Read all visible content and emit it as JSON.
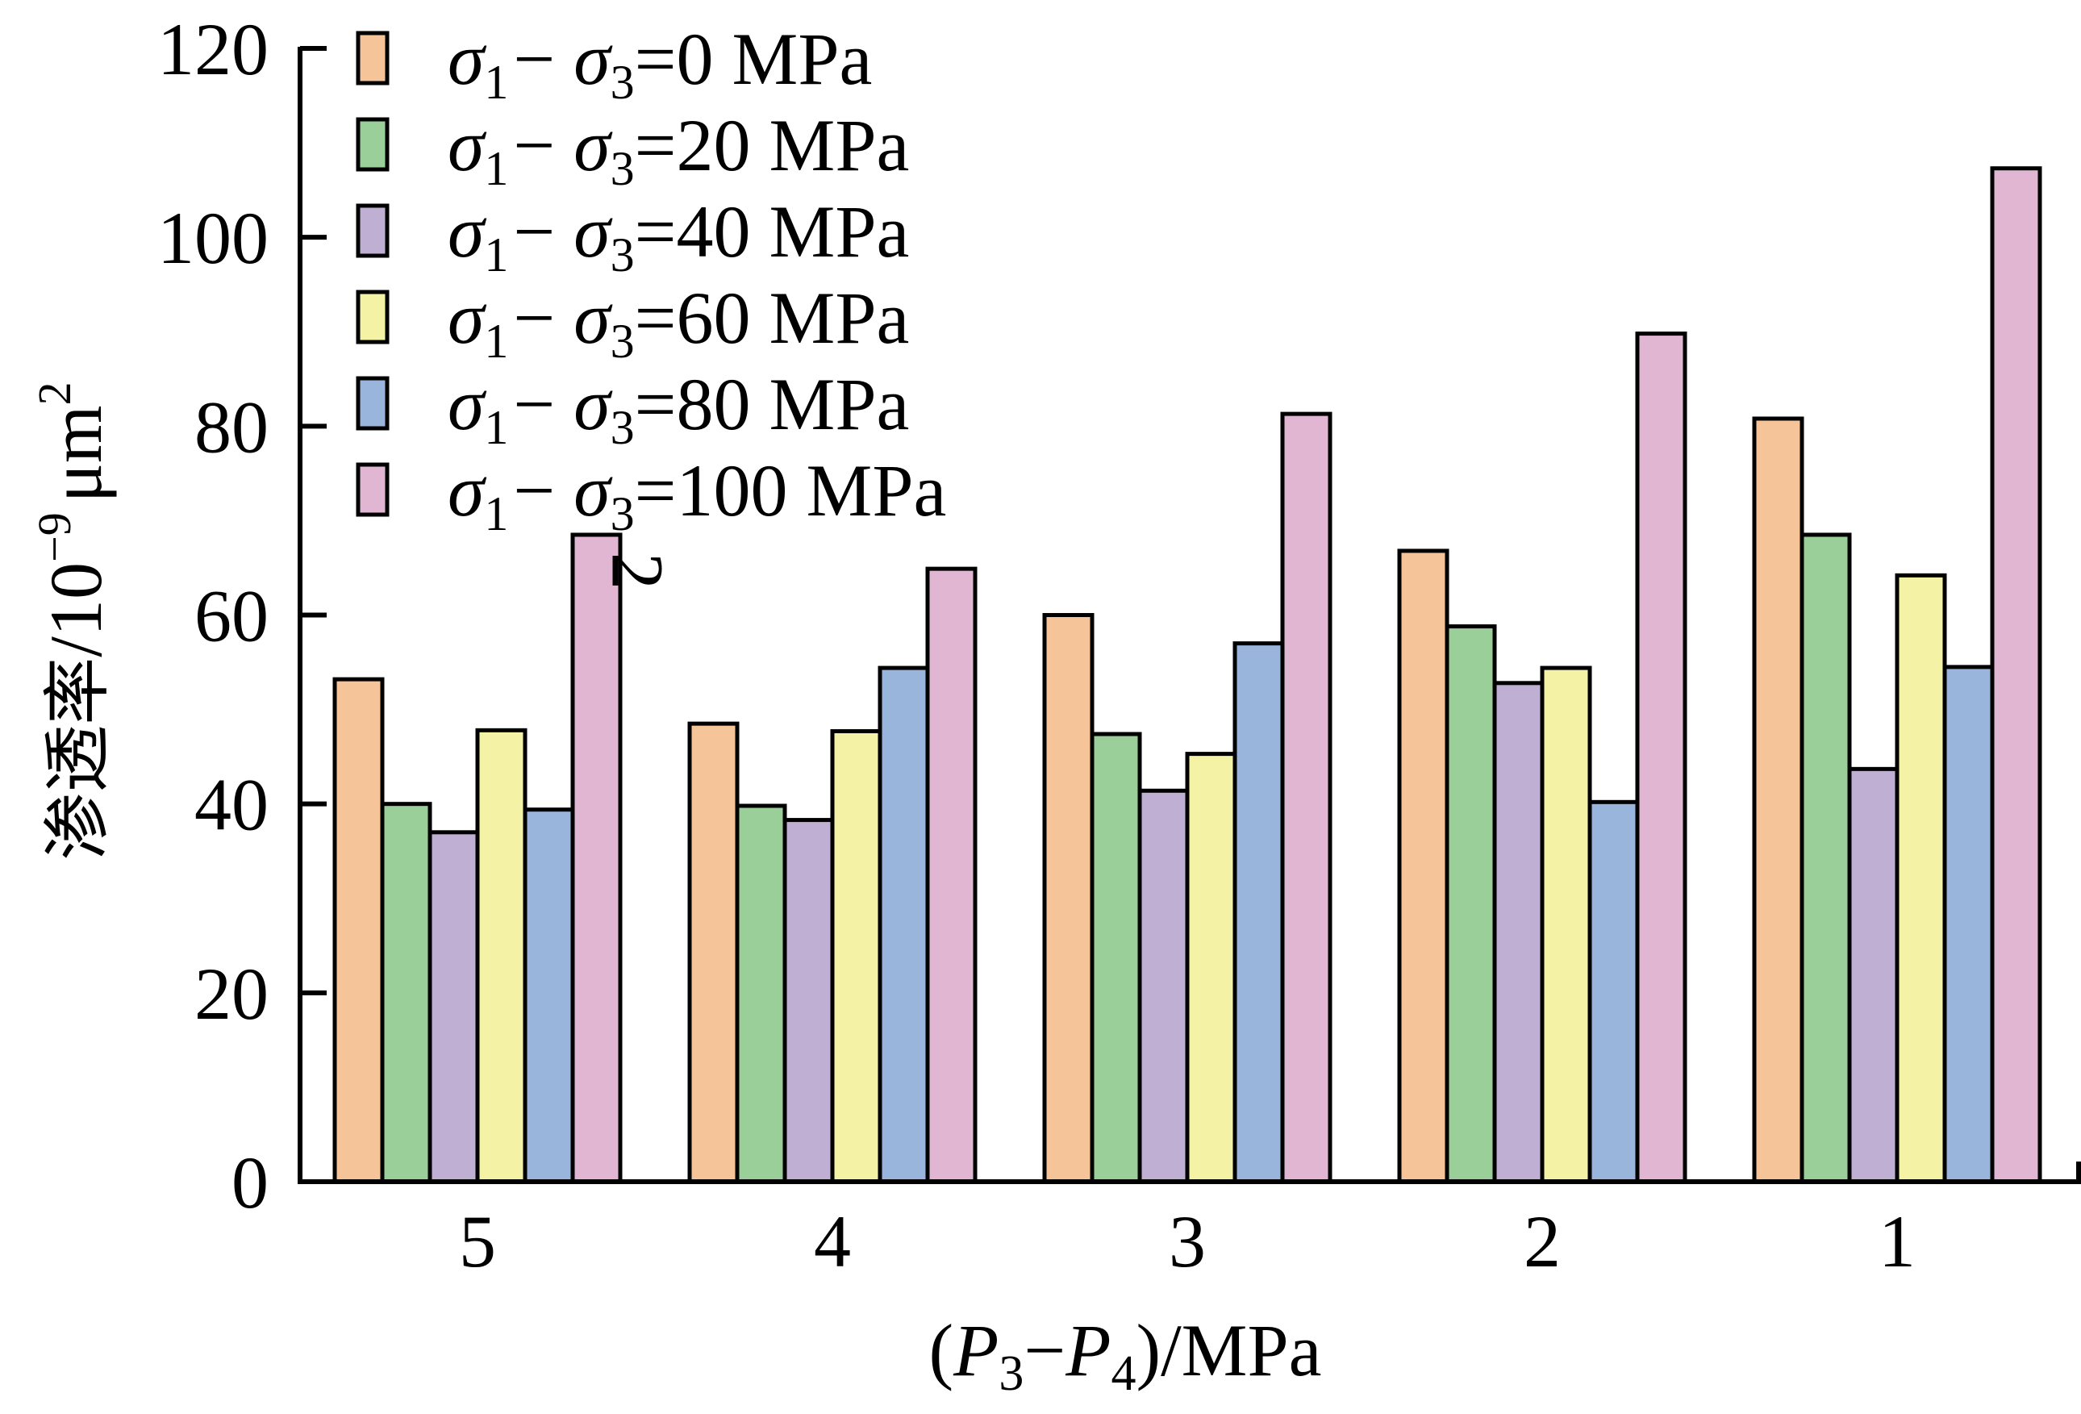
{
  "chart_data": {
    "type": "bar",
    "title": "",
    "xlabel": {
      "open": "(",
      "p3": "P",
      "p3_sub": "3",
      "dash": "−",
      "p4": "P",
      "p4_sub": "4",
      "close": ")/MPa"
    },
    "xlabel_text": "(P3−P4)/MPa",
    "ylabel": {
      "cn": "渗透率",
      "unit": "/10",
      "exp": "−9",
      "unit2": "μm",
      "exp2": "2"
    },
    "ylabel_text": "渗透率/10−9 μm2",
    "ylim": [
      0,
      120
    ],
    "yticks": [
      0,
      20,
      40,
      60,
      80,
      100,
      120
    ],
    "grid": false,
    "legend_position": "top-left",
    "categories": [
      "5",
      "4",
      "3",
      "2",
      "1"
    ],
    "series": [
      {
        "name": "σ1−σ3=0 MPa",
        "value_label": "0",
        "color": "#f5c498",
        "values": [
          53.2,
          48.5,
          60.0,
          66.8,
          80.8
        ]
      },
      {
        "name": "σ1−σ3=20 MPa",
        "value_label": "20",
        "color": "#9bcf9a",
        "values": [
          40.0,
          39.8,
          47.4,
          58.8,
          68.5
        ]
      },
      {
        "name": "σ1−σ3=40 MPa",
        "value_label": "40",
        "color": "#bfb0d3",
        "values": [
          37.0,
          38.3,
          41.4,
          52.8,
          43.7
        ]
      },
      {
        "name": "σ1−σ3=60 MPa",
        "value_label": "60",
        "color": "#f4f2a4",
        "values": [
          47.8,
          47.7,
          45.3,
          54.4,
          64.2
        ]
      },
      {
        "name": "σ1−σ3=80 MPa",
        "value_label": "80",
        "color": "#9ab5dc",
        "values": [
          39.4,
          54.4,
          57.0,
          40.2,
          54.5
        ]
      },
      {
        "name": "σ1−σ3=100 MPa",
        "value_label": "100",
        "color": "#e1b6d3",
        "values": [
          68.5,
          64.9,
          81.3,
          89.8,
          107.3
        ]
      }
    ],
    "annotations": [
      {
        "text": "2",
        "category": "5",
        "series": "σ1−σ3=100 MPa"
      }
    ]
  },
  "legend_parts": {
    "sigma": "σ",
    "sub1": "1",
    "minus": "−",
    "sub3": "3",
    "eq": "=",
    "unit": " MPa"
  }
}
